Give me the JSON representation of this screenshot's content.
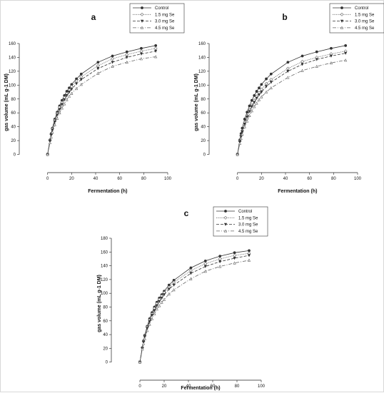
{
  "figure": {
    "series_styles": [
      {
        "name": "Control",
        "color": "#333333",
        "dash": "",
        "marker": "circle-filled"
      },
      {
        "name": "1.5 mg Se",
        "color": "#666666",
        "dash": "1.2 1.2",
        "marker": "diamond-open"
      },
      {
        "name": "3.0 mg Se",
        "color": "#333333",
        "dash": "4 2",
        "marker": "triangle-down-filled"
      },
      {
        "name": "4.5 mg Se",
        "color": "#666666",
        "dash": "5 2 1 2",
        "marker": "triangle-up-open"
      }
    ]
  },
  "chart_data": [
    {
      "type": "line",
      "panel_label": "a",
      "xlabel": "Fermentation (h)",
      "ylabel": "gas volume (mL g-1 DM)",
      "xlim": [
        -20,
        100
      ],
      "ylim": [
        -20,
        160
      ],
      "xticks": [
        0,
        20,
        40,
        60,
        80,
        100
      ],
      "yticks": [
        0,
        20,
        40,
        60,
        80,
        100,
        120,
        140,
        160
      ],
      "grid": false,
      "legend_position": "top-right",
      "x": [
        0,
        2,
        3,
        4,
        6,
        8,
        10,
        12,
        14,
        16,
        18,
        20,
        24,
        28,
        42,
        54,
        66,
        78,
        90
      ],
      "series": [
        {
          "name": "Control",
          "values": [
            0,
            21,
            30,
            38,
            51,
            61,
            70,
            78,
            85,
            91,
            96,
            101,
            109,
            116,
            133,
            142,
            148,
            153,
            157
          ]
        },
        {
          "name": "1.5 mg Se",
          "values": [
            0,
            20,
            29,
            37,
            49,
            59,
            68,
            75,
            82,
            88,
            93,
            98,
            106,
            112,
            128,
            138,
            144,
            149,
            153
          ]
        },
        {
          "name": "3.0 mg Se",
          "values": [
            0,
            19,
            28,
            35,
            47,
            57,
            65,
            72,
            79,
            85,
            90,
            94,
            102,
            108,
            124,
            133,
            140,
            145,
            149
          ]
        },
        {
          "name": "4.5 mg Se",
          "values": [
            0,
            17,
            25,
            32,
            43,
            52,
            60,
            67,
            73,
            79,
            84,
            88,
            95,
            101,
            117,
            127,
            133,
            138,
            141
          ]
        }
      ]
    },
    {
      "type": "line",
      "panel_label": "b",
      "xlabel": "Fermentation (h)",
      "ylabel": "gas volume (mL g-1 DM)",
      "xlim": [
        -20,
        100
      ],
      "ylim": [
        -20,
        160
      ],
      "xticks": [
        0,
        20,
        40,
        60,
        80,
        100
      ],
      "yticks": [
        0,
        20,
        40,
        60,
        80,
        100,
        120,
        140,
        160
      ],
      "grid": false,
      "legend_position": "top-right",
      "x": [
        0,
        2,
        3,
        4,
        6,
        8,
        10,
        12,
        14,
        16,
        18,
        20,
        24,
        28,
        42,
        54,
        66,
        78,
        90
      ],
      "series": [
        {
          "name": "Control",
          "values": [
            0,
            21,
            30,
            38,
            51,
            61,
            70,
            78,
            85,
            91,
            96,
            101,
            109,
            116,
            133,
            142,
            148,
            153,
            157
          ]
        },
        {
          "name": "1.5 mg Se",
          "values": [
            0,
            19,
            27,
            34,
            46,
            56,
            64,
            71,
            78,
            84,
            89,
            94,
            102,
            108,
            124,
            134,
            140,
            145,
            149
          ]
        },
        {
          "name": "3.0 mg Se",
          "values": [
            0,
            18,
            26,
            33,
            44,
            54,
            62,
            69,
            75,
            81,
            86,
            90,
            98,
            104,
            120,
            130,
            137,
            142,
            146
          ]
        },
        {
          "name": "4.5 mg Se",
          "values": [
            0,
            16,
            23,
            29,
            40,
            48,
            56,
            63,
            69,
            74,
            79,
            83,
            90,
            96,
            111,
            121,
            127,
            132,
            136
          ]
        }
      ]
    },
    {
      "type": "line",
      "panel_label": "c",
      "xlabel": "Fermentation (h)",
      "ylabel": "gas volume (mL g-1 DM)",
      "xlim": [
        -20,
        100
      ],
      "ylim": [
        -20,
        180
      ],
      "xticks": [
        0,
        20,
        40,
        60,
        80,
        100
      ],
      "yticks": [
        0,
        20,
        40,
        60,
        80,
        100,
        120,
        140,
        160,
        180
      ],
      "grid": false,
      "legend_position": "top-right",
      "x": [
        0,
        2,
        3,
        4,
        6,
        8,
        10,
        12,
        14,
        16,
        18,
        20,
        24,
        28,
        42,
        54,
        66,
        78,
        90
      ],
      "series": [
        {
          "name": "Control",
          "values": [
            0,
            21,
            31,
            39,
            52,
            63,
            72,
            80,
            87,
            93,
            98,
            103,
            112,
            119,
            137,
            147,
            154,
            159,
            162
          ]
        },
        {
          "name": "1.5 mg Se",
          "values": [
            0,
            21,
            30,
            38,
            51,
            61,
            70,
            78,
            85,
            91,
            96,
            101,
            109,
            116,
            133,
            143,
            150,
            155,
            158
          ]
        },
        {
          "name": "3.0 mg Se",
          "values": [
            0,
            20,
            29,
            37,
            49,
            59,
            68,
            75,
            82,
            88,
            93,
            98,
            106,
            112,
            129,
            139,
            146,
            151,
            155
          ]
        },
        {
          "name": "4.5 mg Se",
          "values": [
            0,
            19,
            27,
            34,
            46,
            55,
            63,
            70,
            77,
            82,
            87,
            91,
            99,
            105,
            121,
            132,
            139,
            144,
            148
          ]
        }
      ]
    }
  ]
}
